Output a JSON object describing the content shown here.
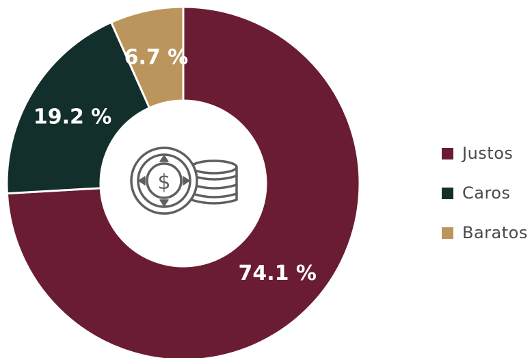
{
  "chart_data": {
    "type": "pie",
    "donut": true,
    "categories": [
      "Justos",
      "Caros",
      "Baratos"
    ],
    "values": [
      74.1,
      19.2,
      6.7
    ],
    "labels": [
      "74.1 %",
      "19.2 %",
      "6.7 %"
    ],
    "colors": [
      "#6a1c33",
      "#132f2b",
      "#bc955c"
    ],
    "legend_position": "right",
    "center_icon": "coins-dollar-icon"
  }
}
